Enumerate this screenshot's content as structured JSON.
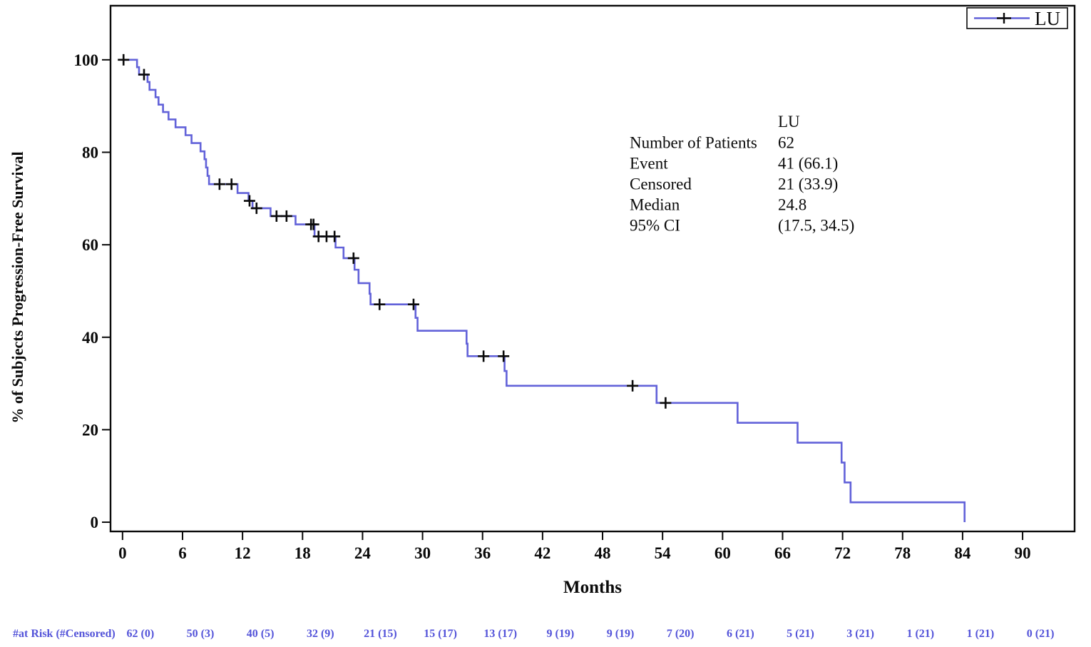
{
  "figure": {
    "legend": {
      "label": "LU"
    },
    "stats": {
      "header": "LU",
      "rows": [
        {
          "label": "Number of Patients",
          "value": "62"
        },
        {
          "label": "Event",
          "value": "41 (66.1)"
        },
        {
          "label": "Censored",
          "value": "21 (33.9)"
        },
        {
          "label": "Median",
          "value": "24.8"
        },
        {
          "label": "95% CI",
          "value": "(17.5, 34.5)"
        }
      ]
    }
  },
  "chart_data": {
    "type": "line",
    "subtype": "kaplan-meier-step-curve",
    "title": "",
    "xlabel": "Months",
    "ylabel": "% of Subjects Progression-Free Survival",
    "xlim": [
      -1.2,
      95.2
    ],
    "ylim": [
      -2,
      111.7
    ],
    "x_ticks": [
      0,
      6,
      12,
      18,
      24,
      30,
      36,
      42,
      48,
      54,
      60,
      66,
      72,
      78,
      84,
      90
    ],
    "y_ticks": [
      0,
      20,
      40,
      60,
      80,
      100
    ],
    "grid": false,
    "legend_position": "top-right",
    "axis_color": "#0a0a0a",
    "series": [
      {
        "name": "LU",
        "color": "#6262D9",
        "start": [
          0,
          100
        ],
        "steps": [
          [
            1.45,
            98.4
          ],
          [
            1.65,
            96.8
          ],
          [
            2.5,
            95.2
          ],
          [
            2.7,
            93.5
          ],
          [
            3.3,
            91.9
          ],
          [
            3.6,
            90.3
          ],
          [
            4.05,
            88.7
          ],
          [
            4.6,
            87.1
          ],
          [
            5.3,
            85.4
          ],
          [
            6.3,
            83.7
          ],
          [
            6.9,
            82.0
          ],
          [
            7.8,
            80.2
          ],
          [
            8.2,
            78.5
          ],
          [
            8.35,
            76.7
          ],
          [
            8.5,
            74.9
          ],
          [
            8.65,
            73.1
          ],
          [
            11.5,
            71.2
          ],
          [
            12.6,
            69.5
          ],
          [
            13.0,
            67.9
          ],
          [
            14.8,
            66.2
          ],
          [
            17.3,
            64.4
          ],
          [
            19.2,
            61.8
          ],
          [
            21.3,
            59.4
          ],
          [
            22.1,
            57.1
          ],
          [
            23.2,
            54.6
          ],
          [
            23.6,
            51.7
          ],
          [
            24.7,
            49.4
          ],
          [
            24.8,
            47.1
          ],
          [
            29.3,
            44.2
          ],
          [
            29.5,
            41.4
          ],
          [
            34.4,
            38.6
          ],
          [
            34.5,
            35.9
          ],
          [
            38.2,
            32.7
          ],
          [
            38.4,
            29.5
          ],
          [
            53.4,
            25.8
          ],
          [
            61.5,
            21.5
          ],
          [
            67.5,
            17.2
          ],
          [
            71.9,
            12.9
          ],
          [
            72.2,
            8.6
          ],
          [
            72.8,
            4.3
          ],
          [
            84.2,
            0.0
          ]
        ],
        "censor_marks": [
          [
            0.1,
            100
          ],
          [
            2.15,
            96.8
          ],
          [
            9.7,
            73.1
          ],
          [
            10.9,
            73.1
          ],
          [
            12.7,
            69.5
          ],
          [
            13.4,
            67.9
          ],
          [
            15.4,
            66.2
          ],
          [
            16.4,
            66.2
          ],
          [
            18.85,
            64.4
          ],
          [
            19.1,
            64.4
          ],
          [
            19.6,
            61.8
          ],
          [
            20.4,
            61.8
          ],
          [
            21.2,
            61.8
          ],
          [
            23.1,
            57.1
          ],
          [
            25.7,
            47.1
          ],
          [
            29.1,
            47.1
          ],
          [
            36.1,
            35.9
          ],
          [
            38.1,
            35.9
          ],
          [
            51.0,
            29.5
          ],
          [
            54.3,
            25.8
          ]
        ]
      }
    ],
    "at_risk": {
      "label": "#at Risk (#Censored)",
      "color": "#5353D9",
      "times": [
        0,
        6,
        12,
        18,
        24,
        30,
        36,
        42,
        48,
        54,
        60,
        66,
        72,
        78,
        84,
        90
      ],
      "values": [
        "62 (0)",
        "50 (3)",
        "40 (5)",
        "32 (9)",
        "21 (15)",
        "15 (17)",
        "13 (17)",
        "9 (19)",
        "9 (19)",
        "7 (20)",
        "6 (21)",
        "5 (21)",
        "3 (21)",
        "1 (21)",
        "1 (21)",
        "0 (21)"
      ]
    }
  }
}
